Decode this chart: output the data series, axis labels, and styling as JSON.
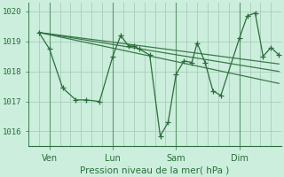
{
  "xlabel": "Pression niveau de la mer( hPa )",
  "ylim": [
    1015.5,
    1020.3
  ],
  "xlim": [
    0,
    96
  ],
  "yticks": [
    1016,
    1017,
    1018,
    1019,
    1020
  ],
  "xtick_positions": [
    8,
    32,
    56,
    80
  ],
  "xtick_labels": [
    "Ven",
    "Lun",
    "Sam",
    "Dim"
  ],
  "vlines": [
    8,
    32,
    56,
    80
  ],
  "bg_color": "#cceedd",
  "grid_color": "#aaccbb",
  "line_color": "#2a6e3a",
  "series": [
    [
      4,
      1019.3
    ],
    [
      8,
      1018.75
    ],
    [
      13,
      1017.45
    ],
    [
      18,
      1017.05
    ],
    [
      22,
      1017.05
    ],
    [
      27,
      1017.0
    ],
    [
      32,
      1018.5
    ],
    [
      35,
      1019.2
    ],
    [
      38,
      1018.85
    ],
    [
      40,
      1018.85
    ],
    [
      42,
      1018.75
    ],
    [
      46,
      1018.55
    ],
    [
      50,
      1015.85
    ],
    [
      53,
      1016.3
    ],
    [
      56,
      1017.9
    ],
    [
      59,
      1018.35
    ],
    [
      62,
      1018.3
    ],
    [
      64,
      1018.95
    ],
    [
      67,
      1018.3
    ],
    [
      70,
      1017.35
    ],
    [
      73,
      1017.2
    ],
    [
      80,
      1019.1
    ],
    [
      83,
      1019.85
    ],
    [
      86,
      1019.95
    ],
    [
      89,
      1018.5
    ],
    [
      92,
      1018.8
    ],
    [
      95,
      1018.55
    ]
  ],
  "series2": [
    [
      4,
      1019.3
    ],
    [
      95,
      1017.6
    ]
  ],
  "series3": [
    [
      4,
      1019.3
    ],
    [
      95,
      1018.0
    ]
  ],
  "series4": [
    [
      4,
      1019.3
    ],
    [
      95,
      1018.25
    ]
  ]
}
